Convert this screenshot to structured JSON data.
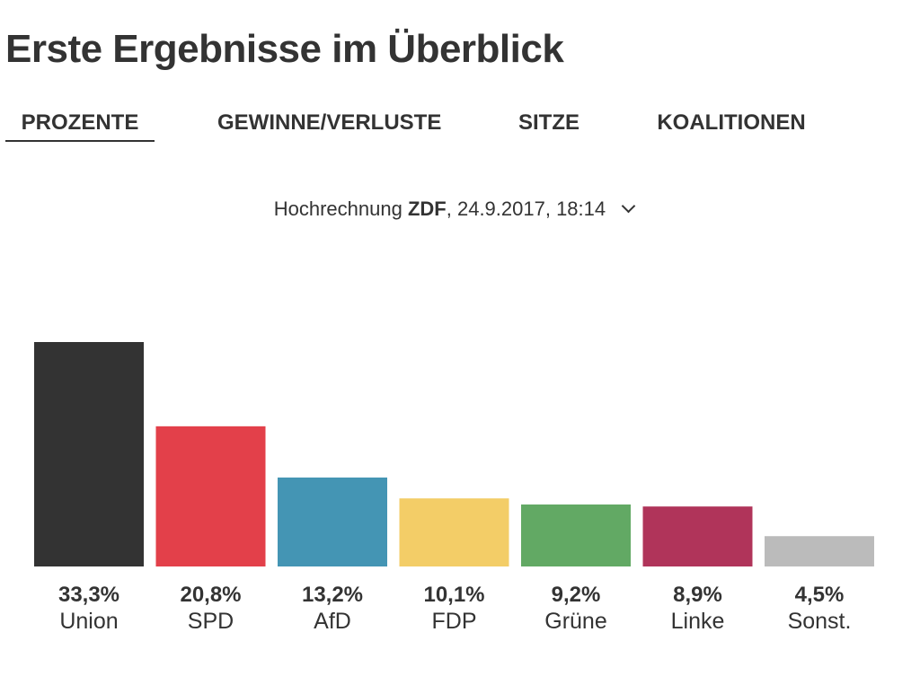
{
  "page": {
    "title": "Erste Ergebnisse im Überblick"
  },
  "tabs": [
    {
      "label": "PROZENTE",
      "active": true
    },
    {
      "label": "GEWINNE/VERLUSTE",
      "active": false
    },
    {
      "label": "SITZE",
      "active": false
    },
    {
      "label": "KOALITIONEN",
      "active": false
    }
  ],
  "source": {
    "prefix": "Hochrechnung",
    "broadcaster": "ZDF",
    "suffix": ", 24.9.2017, 18:14",
    "dropdown_icon": "chevron-down-icon"
  },
  "chart_data": {
    "type": "bar",
    "categories": [
      "Union",
      "SPD",
      "AfD",
      "FDP",
      "Grüne",
      "Linke",
      "Sonst."
    ],
    "values": [
      33.3,
      20.8,
      13.2,
      10.1,
      9.2,
      8.9,
      4.5
    ],
    "value_labels": [
      "33,3%",
      "20,8%",
      "13,2%",
      "10,1%",
      "9,2%",
      "8,9%",
      "4,5%"
    ],
    "colors": [
      "#333333",
      "#e3404a",
      "#4495b4",
      "#f3cd67",
      "#62a964",
      "#b0345a",
      "#bbbbbb"
    ],
    "ylim": [
      0,
      33.3
    ],
    "grid": false,
    "title": "",
    "xlabel": "",
    "ylabel": ""
  }
}
